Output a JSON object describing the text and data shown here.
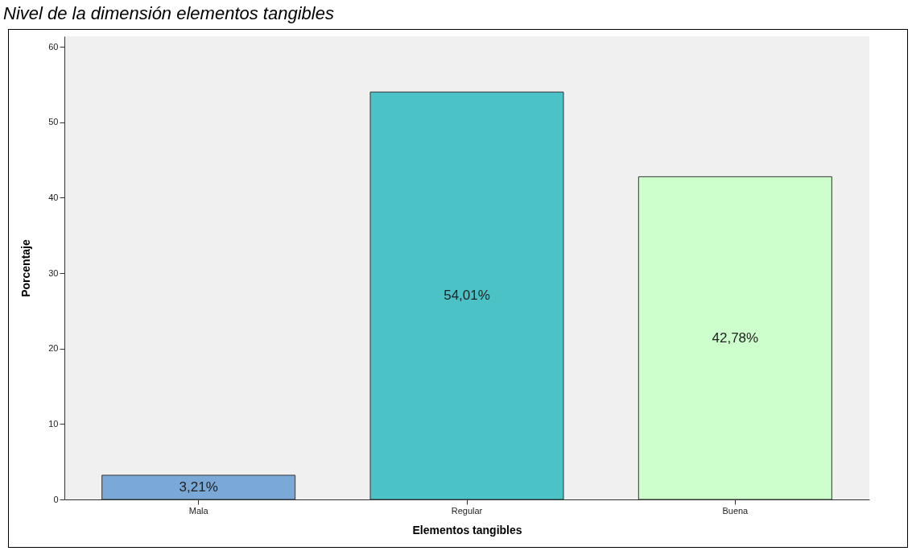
{
  "chart_data": {
    "type": "bar",
    "title": "Nivel de la dimensión elementos tangibles",
    "xlabel": "Elementos tangibles",
    "ylabel": "Porcentaje",
    "categories": [
      "Mala",
      "Regular",
      "Buena"
    ],
    "values": [
      3.21,
      54.01,
      42.78
    ],
    "colors": [
      "#7ba9d7",
      "#4bc2c5",
      "#ccffcc"
    ],
    "value_labels": [
      "3,21%",
      "54,01%",
      "42,78%"
    ],
    "ylim": [
      0,
      61.4
    ],
    "yticks": [
      0,
      10,
      20,
      30,
      40,
      50,
      60
    ],
    "grid": false
  }
}
